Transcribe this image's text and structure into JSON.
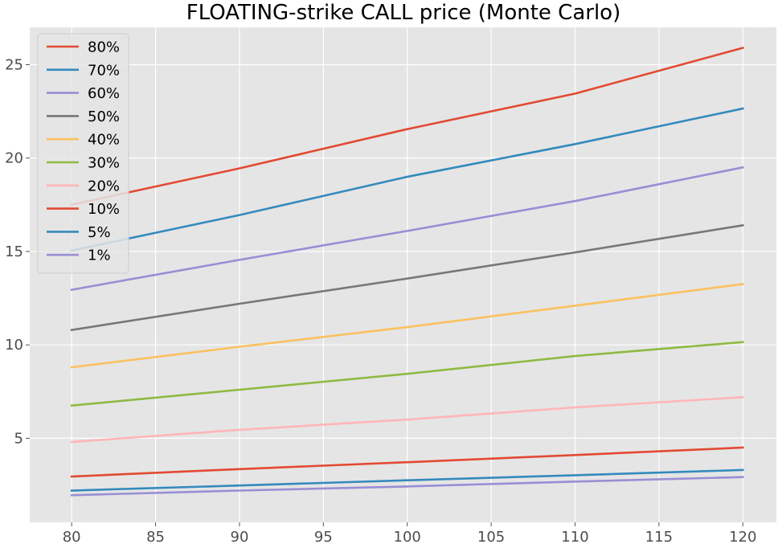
{
  "chart_data": {
    "type": "line",
    "title": "FLOATING-strike CALL price (Monte Carlo)",
    "xlabel": "",
    "ylabel": "",
    "x": [
      80,
      90,
      100,
      110,
      120
    ],
    "xlim": [
      77.5,
      122
    ],
    "ylim": [
      0.5,
      27
    ],
    "xticks": [
      "80",
      "85",
      "90",
      "95",
      "100",
      "105",
      "110",
      "115",
      "120"
    ],
    "yticks": [
      "5",
      "10",
      "15",
      "20",
      "25"
    ],
    "grid": true,
    "legend_position": "upper-left",
    "series": [
      {
        "name": "80%",
        "color": "#E24A33",
        "values": [
          17.5,
          19.45,
          21.55,
          23.45,
          25.9
        ]
      },
      {
        "name": "70%",
        "color": "#348ABD",
        "values": [
          15.05,
          16.95,
          19.0,
          20.75,
          22.65
        ]
      },
      {
        "name": "60%",
        "color": "#988ED5",
        "values": [
          12.95,
          14.55,
          16.1,
          17.7,
          19.5
        ]
      },
      {
        "name": "50%",
        "color": "#777777",
        "values": [
          10.8,
          12.2,
          13.55,
          14.95,
          16.4
        ]
      },
      {
        "name": "40%",
        "color": "#FBC15E",
        "values": [
          8.8,
          9.9,
          10.95,
          12.1,
          13.25
        ]
      },
      {
        "name": "30%",
        "color": "#8EBA42",
        "values": [
          6.75,
          7.6,
          8.45,
          9.4,
          10.15
        ]
      },
      {
        "name": "20%",
        "color": "#FFB5B8",
        "values": [
          4.8,
          5.45,
          6.0,
          6.65,
          7.2
        ]
      },
      {
        "name": "10%",
        "color": "#E24A33",
        "values": [
          2.95,
          3.35,
          3.72,
          4.1,
          4.5
        ]
      },
      {
        "name": "5%",
        "color": "#348ABD",
        "values": [
          2.2,
          2.47,
          2.75,
          3.02,
          3.3
        ]
      },
      {
        "name": "1%",
        "color": "#988ED5",
        "values": [
          1.95,
          2.2,
          2.42,
          2.68,
          2.92
        ]
      }
    ]
  }
}
